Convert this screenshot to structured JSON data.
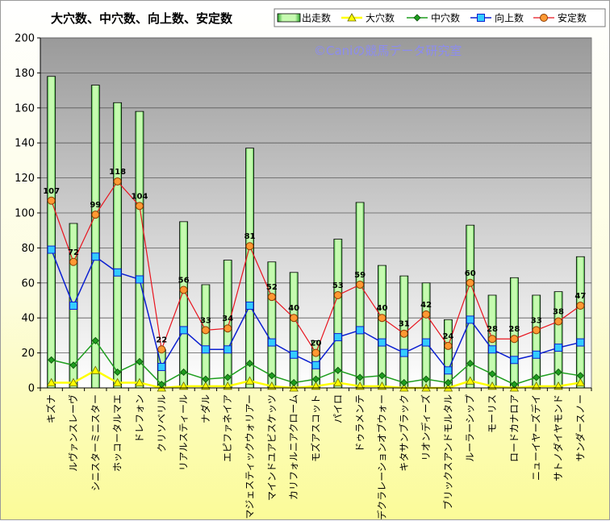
{
  "chart_data": {
    "type": "bar",
    "title": "大穴数、中穴数、向上数、安定数",
    "watermark": "©Caniの競馬データ研究室",
    "ylim": [
      0,
      200
    ],
    "yticks": [
      0,
      20,
      40,
      60,
      80,
      100,
      120,
      140,
      160,
      180,
      200
    ],
    "grid": true,
    "legend_position": "top-right",
    "categories": [
      "キズナ",
      "ルヴァンスレーヴ",
      "シニスターミニスター",
      "ホッコータルマエ",
      "ドレフォン",
      "クリソベリル",
      "リアルスティール",
      "ナダル",
      "エピファネイア",
      "マジェスティックウォリアー",
      "マインドユアビスケッツ",
      "カリフォルニアクローム",
      "モズアスコット",
      "パイロ",
      "ドゥラメンテ",
      "デクラレーションオブウォー",
      "キタサンブラック",
      "リオンディーズ",
      "ブリックスアンドモルタル",
      "ルーラーシップ",
      "モーリス",
      "ロードカナロア",
      "ニューイヤーズデイ",
      "サトノダイヤモンド",
      "サンダースノー"
    ],
    "series": [
      {
        "name": "出走数",
        "type": "bar",
        "color": "#b9f7a4",
        "values": [
          178,
          94,
          173,
          163,
          158,
          22,
          95,
          59,
          73,
          137,
          72,
          66,
          27,
          85,
          106,
          70,
          64,
          60,
          39,
          93,
          53,
          63,
          53,
          55,
          75
        ]
      },
      {
        "name": "大穴数",
        "type": "line",
        "color": "#ffff00",
        "values": [
          3,
          3,
          10,
          3,
          3,
          0,
          1,
          1,
          1,
          4,
          1,
          0,
          1,
          3,
          1,
          1,
          0,
          0,
          0,
          4,
          1,
          0,
          1,
          1,
          3
        ]
      },
      {
        "name": "中穴数",
        "type": "line",
        "color": "#1e9e1e",
        "values": [
          16,
          13,
          27,
          9,
          15,
          2,
          9,
          5,
          6,
          14,
          7,
          3,
          5,
          10,
          6,
          7,
          3,
          5,
          3,
          14,
          8,
          2,
          6,
          9,
          7
        ]
      },
      {
        "name": "向上数",
        "type": "line",
        "color": "#0b1fd1",
        "values": [
          79,
          47,
          75,
          66,
          62,
          12,
          33,
          22,
          22,
          47,
          26,
          19,
          13,
          29,
          33,
          26,
          20,
          26,
          10,
          39,
          22,
          16,
          19,
          23,
          26
        ]
      },
      {
        "name": "安定数",
        "type": "line",
        "color": "#e8141e",
        "values": [
          107,
          72,
          99,
          118,
          104,
          22,
          56,
          33,
          34,
          81,
          52,
          40,
          20,
          53,
          59,
          40,
          31,
          42,
          24,
          60,
          28,
          28,
          33,
          38,
          47
        ]
      }
    ]
  }
}
